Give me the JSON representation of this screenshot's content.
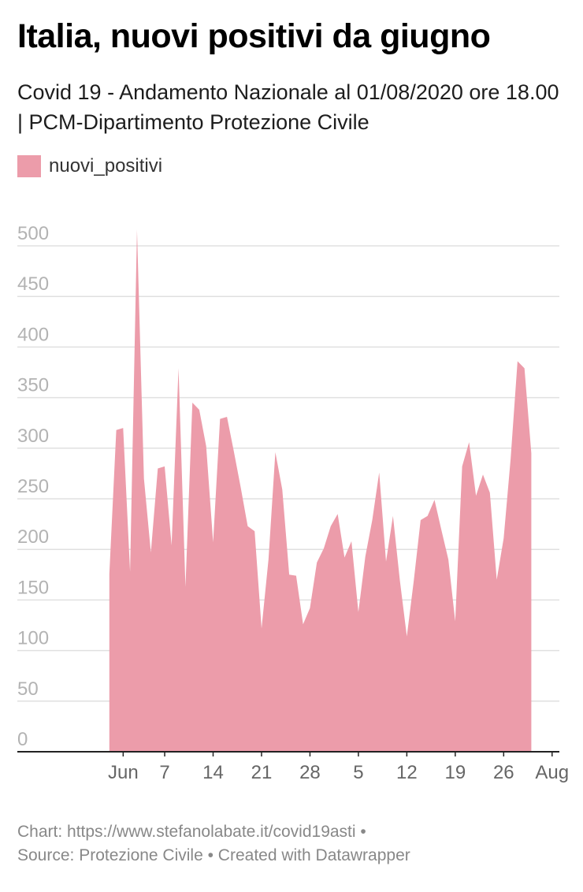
{
  "title": "Italia, nuovi positivi da giugno",
  "subtitle": "Covid 19 - Andamento Nazionale al 01/08/2020 ore 18.00 | PCM-Dipartimento Protezione Civile",
  "footer": {
    "line1": "Chart: https://www.stefanolabate.it/covid19asti •",
    "line2": "Source: Protezione Civile • Created with Datawrapper"
  },
  "colors": {
    "area": "#ec9caa",
    "grid": "#e0e0e0",
    "axis": "#222222",
    "tick_text": "#b3b3b3",
    "xtick_text": "#666666"
  },
  "chart_data": {
    "type": "area",
    "title": "Italia, nuovi positivi da giugno",
    "xlabel": "",
    "ylabel": "",
    "legend": {
      "placement": "top-left",
      "entries": [
        "nuovi_positivi"
      ]
    },
    "grid": true,
    "ylim": [
      0,
      500
    ],
    "yticks": [
      0,
      50,
      100,
      150,
      200,
      250,
      300,
      350,
      400,
      450,
      500
    ],
    "xlim": [
      "2020-05-29",
      "2020-08-01"
    ],
    "xticks": [
      {
        "date": "2020-06-01",
        "label": "Jun"
      },
      {
        "date": "2020-06-07",
        "label": "7"
      },
      {
        "date": "2020-06-14",
        "label": "14"
      },
      {
        "date": "2020-06-21",
        "label": "21"
      },
      {
        "date": "2020-06-28",
        "label": "28"
      },
      {
        "date": "2020-07-05",
        "label": "5"
      },
      {
        "date": "2020-07-12",
        "label": "12"
      },
      {
        "date": "2020-07-19",
        "label": "19"
      },
      {
        "date": "2020-07-26",
        "label": "26"
      },
      {
        "date": "2020-08-02",
        "label": "Aug"
      }
    ],
    "series": [
      {
        "name": "nuovi_positivi",
        "points": [
          [
            "2020-05-30",
            176
          ],
          [
            "2020-05-31",
            318
          ],
          [
            "2020-06-01",
            320
          ],
          [
            "2020-06-02",
            178
          ],
          [
            "2020-06-03",
            516
          ],
          [
            "2020-06-04",
            270
          ],
          [
            "2020-06-05",
            197
          ],
          [
            "2020-06-06",
            280
          ],
          [
            "2020-06-07",
            282
          ],
          [
            "2020-06-08",
            204
          ],
          [
            "2020-06-09",
            379
          ],
          [
            "2020-06-10",
            163
          ],
          [
            "2020-06-11",
            345
          ],
          [
            "2020-06-12",
            338
          ],
          [
            "2020-06-13",
            302
          ],
          [
            "2020-06-14",
            207
          ],
          [
            "2020-06-15",
            329
          ],
          [
            "2020-06-16",
            331
          ],
          [
            "2020-06-17",
            297
          ],
          [
            "2020-06-18",
            261
          ],
          [
            "2020-06-19",
            223
          ],
          [
            "2020-06-20",
            218
          ],
          [
            "2020-06-21",
            122
          ],
          [
            "2020-06-22",
            190
          ],
          [
            "2020-06-23",
            296
          ],
          [
            "2020-06-24",
            259
          ],
          [
            "2020-06-25",
            175
          ],
          [
            "2020-06-26",
            174
          ],
          [
            "2020-06-27",
            126
          ],
          [
            "2020-06-28",
            142
          ],
          [
            "2020-06-29",
            187
          ],
          [
            "2020-06-30",
            201
          ],
          [
            "2020-07-01",
            223
          ],
          [
            "2020-07-02",
            235
          ],
          [
            "2020-07-03",
            192
          ],
          [
            "2020-07-04",
            208
          ],
          [
            "2020-07-05",
            138
          ],
          [
            "2020-07-06",
            193
          ],
          [
            "2020-07-07",
            229
          ],
          [
            "2020-07-08",
            276
          ],
          [
            "2020-07-09",
            188
          ],
          [
            "2020-07-10",
            233
          ],
          [
            "2020-07-11",
            169
          ],
          [
            "2020-07-12",
            114
          ],
          [
            "2020-07-13",
            169
          ],
          [
            "2020-07-14",
            229
          ],
          [
            "2020-07-15",
            233
          ],
          [
            "2020-07-16",
            249
          ],
          [
            "2020-07-17",
            219
          ],
          [
            "2020-07-18",
            190
          ],
          [
            "2020-07-19",
            129
          ],
          [
            "2020-07-20",
            282
          ],
          [
            "2020-07-21",
            306
          ],
          [
            "2020-07-22",
            253
          ],
          [
            "2020-07-23",
            274
          ],
          [
            "2020-07-24",
            256
          ],
          [
            "2020-07-25",
            170
          ],
          [
            "2020-07-26",
            211
          ],
          [
            "2020-07-27",
            289
          ],
          [
            "2020-07-28",
            386
          ],
          [
            "2020-07-29",
            379
          ],
          [
            "2020-07-30",
            295
          ]
        ]
      }
    ]
  }
}
